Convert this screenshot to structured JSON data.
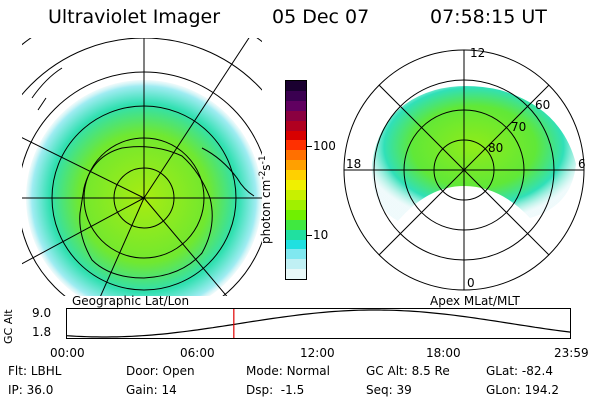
{
  "header": {
    "instrument": "Ultraviolet Imager",
    "date": "05 Dec 07",
    "time": "07:58:15 UT"
  },
  "left_map": {
    "caption": "Geographic Lat/Lon"
  },
  "right_map": {
    "caption": "Apex MLat/MLT",
    "mlt_labels": {
      "top": "12",
      "left": "18",
      "right": "6",
      "bottom": "0"
    },
    "lat_labels": [
      "60",
      "70",
      "80"
    ]
  },
  "colorbar": {
    "unit": "photon cm",
    "unit_exp1": "-2",
    "unit_mid": "s",
    "unit_exp2": "-1",
    "ticks": [
      "100",
      "10"
    ],
    "colors": [
      "#1a0030",
      "#3a0050",
      "#600060",
      "#8a0040",
      "#b00020",
      "#d80000",
      "#ff3000",
      "#ff7000",
      "#ffa000",
      "#ffd000",
      "#f0f000",
      "#c8f000",
      "#a0f000",
      "#70f000",
      "#40e840",
      "#20e0a0",
      "#20e0e0",
      "#80e8f0",
      "#c0f0f4",
      "#e8f8f8"
    ]
  },
  "timeline": {
    "axis_label": "GC Alt",
    "y_top": "9.0",
    "y_bottom": "1.8",
    "times": [
      "00:00",
      "06:00",
      "12:00",
      "18:00",
      "23:59"
    ],
    "marker_fraction": 0.332
  },
  "footer": {
    "filter_label": "Flt:",
    "filter_value": "LBHL",
    "ip_label": "IP:",
    "ip_value": "36.0",
    "door_label": "Door:",
    "door_value": "Open",
    "gain_label": "Gain:",
    "gain_value": "14",
    "mode_label": "Mode:",
    "mode_value": "Normal",
    "dsp_label": "Dsp:",
    "dsp_value": "-1.5",
    "gcalt_label": "GC Alt:",
    "gcalt_value": "8.5 Re",
    "seq_label": "Seq:",
    "seq_value": "39",
    "glat_label": "GLat:",
    "glat_value": "-82.4",
    "glon_label": "GLon:",
    "glon_value": "194.2"
  }
}
